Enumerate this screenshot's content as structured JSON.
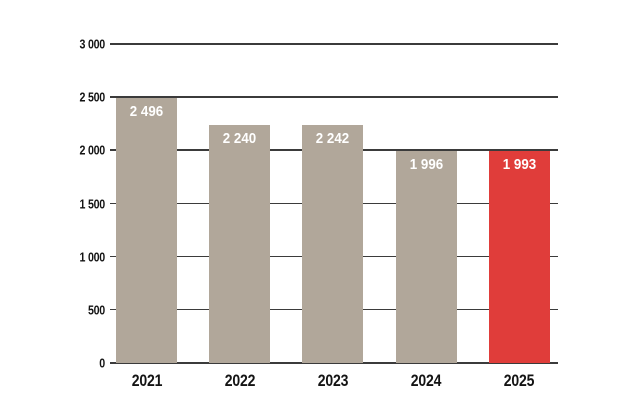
{
  "chart_data": {
    "type": "bar",
    "categories": [
      "2021",
      "2022",
      "2023",
      "2024",
      "2025"
    ],
    "values": [
      2496,
      2240,
      2242,
      1996,
      1993
    ],
    "bar_labels": [
      "2 496",
      "2 240",
      "2 242",
      "1 996",
      "1 993"
    ],
    "title": "",
    "xlabel": "",
    "ylabel": "",
    "ylim": [
      0,
      3000
    ],
    "ytick_interval": 500,
    "ytick_labels": [
      "0",
      "500",
      "1 000",
      "1 500",
      "2 000",
      "2 500",
      "3 000"
    ],
    "grid": true,
    "legend": false,
    "highlight_index": 4,
    "colors": {
      "bar": "#b1a79a",
      "highlight_bar": "#e03d3a",
      "gridline": "#3b3b3b",
      "axis_text": "#141414",
      "bar_label_text": "#ffffff",
      "background": "#ffffff"
    }
  }
}
